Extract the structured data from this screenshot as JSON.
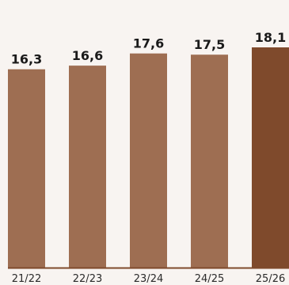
{
  "colors": {
    "background": "#f8f4f1",
    "bar": "#9e6e52",
    "bar_highlight": "#7f4a2c",
    "baseline": "#7f4a2c",
    "label": "#1a1a1a"
  },
  "chart_data": {
    "type": "bar",
    "title": "",
    "xlabel": "",
    "ylabel": "",
    "categories": [
      "21/22",
      "22/23",
      "23/24",
      "24/25",
      "25/26"
    ],
    "values": [
      16.3,
      16.6,
      17.6,
      17.5,
      18.1
    ],
    "value_labels": [
      "16,3",
      "16,6",
      "17,6",
      "17,5",
      "18,1"
    ],
    "highlight_index": 4,
    "ylim": [
      0,
      18.1
    ],
    "grid": false,
    "legend": "none"
  }
}
